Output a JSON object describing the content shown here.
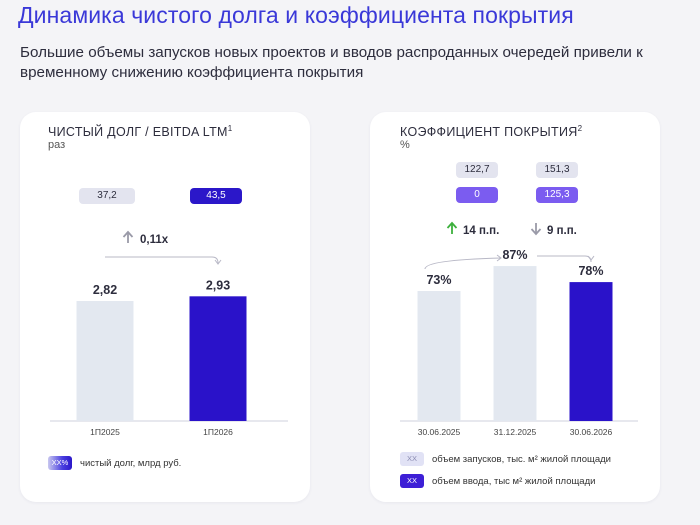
{
  "page": {
    "title": "Динамика чистого долга и коэффициента покрытия",
    "subtitle": "Большие объемы запусков новых проектов и вводов распроданных очередей привели к временному снижению коэффициента покрытия"
  },
  "colors": {
    "title": "#3a38d8",
    "bar_light": "#e3e8f0",
    "bar_dark": "#2a12c9",
    "pill_light": "#e3e4ef",
    "pill_purple": "#7b5cf0",
    "arrow_up_green": "#3db03d",
    "arrow_gray": "#9a9aa8"
  },
  "chart_data": [
    {
      "type": "bar",
      "title": "ЧИСТЫЙ ДОЛГ / EBITDA LTM",
      "title_sup": "1",
      "unit": "раз",
      "categories": [
        "1П2025",
        "1П2026"
      ],
      "values": [
        2.82,
        2.93
      ],
      "value_labels": [
        "2,82",
        "2,93"
      ],
      "ylim": [
        0,
        3.5
      ],
      "grid": false,
      "bar_colors": [
        "#e3e8f0",
        "#2a12c9"
      ],
      "top_pills": [
        "37,2",
        "43,5"
      ],
      "change": {
        "direction": "up",
        "label": "0,11x",
        "icon": "arrow-up-icon"
      },
      "legend": [
        {
          "swatch": "XX%",
          "label": "чистый долг, млрд руб."
        }
      ]
    },
    {
      "type": "bar",
      "title": "КОЭФФИЦИЕНТ ПОКРЫТИЯ",
      "title_sup": "2",
      "unit": "%",
      "categories": [
        "30.06.2025",
        "31.12.2025",
        "30.06.2026"
      ],
      "values": [
        73,
        87,
        78
      ],
      "value_labels": [
        "73%",
        "87%",
        "78%"
      ],
      "ylim": [
        0,
        100
      ],
      "grid": false,
      "bar_colors": [
        "#e3e8f0",
        "#e3e8f0",
        "#2a12c9"
      ],
      "top_pills": [
        {
          "top": "122,7",
          "bottom": "0"
        },
        {
          "top": "151,3",
          "bottom": "125,3"
        }
      ],
      "changes": [
        {
          "direction": "up",
          "label": "14 п.п.",
          "icon": "arrow-up-icon"
        },
        {
          "direction": "down",
          "label": "9 п.п.",
          "icon": "arrow-down-icon"
        }
      ],
      "legend": [
        {
          "swatch": "XX",
          "label": "объем запусков, тыс. м² жилой площади"
        },
        {
          "swatch": "XX",
          "label": "объем ввода, тыс м² жилой площади"
        }
      ]
    }
  ]
}
